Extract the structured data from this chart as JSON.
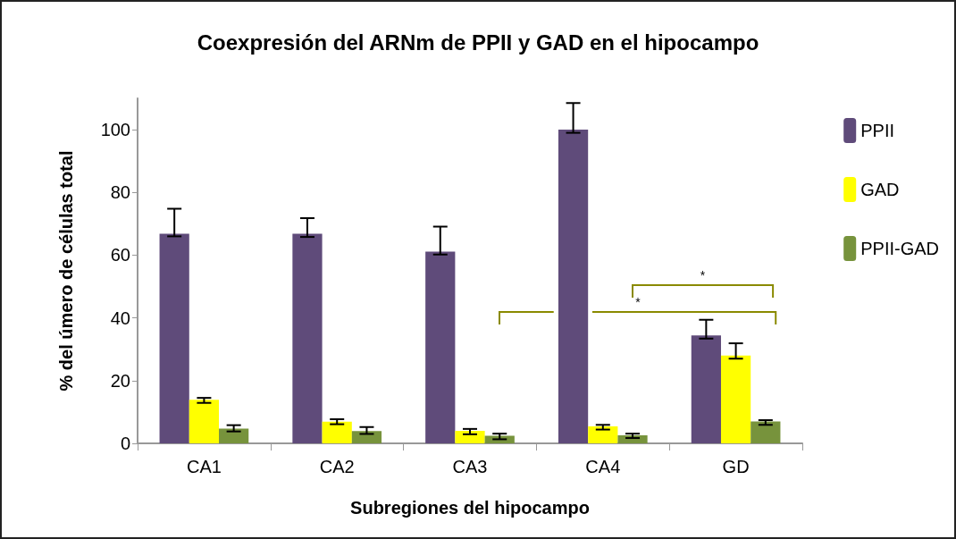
{
  "chart_data": {
    "type": "bar",
    "title": "Coexpresión del ARNm de PPII y GAD en el hipocampo",
    "xlabel": "Subregiones del hipocampo",
    "ylabel": "% del úmero de células total",
    "categories": [
      "CA1",
      "CA2",
      "CA3",
      "CA4",
      "GD"
    ],
    "series": [
      {
        "name": "PPII",
        "color": "#5f4b7a",
        "values": [
          66.8,
          66.8,
          61.1,
          100,
          34.4
        ],
        "errors": [
          [
            66,
            74.8
          ],
          [
            65.8,
            71.8
          ],
          [
            60.2,
            69.1
          ],
          [
            99,
            108.5
          ],
          [
            33.4,
            39.4
          ]
        ]
      },
      {
        "name": "GAD",
        "color": "#ffff00",
        "values": [
          13.9,
          6.9,
          4.0,
          5.4,
          28.0
        ],
        "errors": [
          [
            12.9,
            14.5
          ],
          [
            6.1,
            7.7
          ],
          [
            2.9,
            4.6
          ],
          [
            4.4,
            5.9
          ],
          [
            27.0,
            31.9
          ]
        ]
      },
      {
        "name": "PPII-GAD",
        "color": "#77933c",
        "values": [
          4.7,
          3.9,
          2.4,
          2.6,
          7.0
        ],
        "errors": [
          [
            3.8,
            5.8
          ],
          [
            3.0,
            5.2
          ],
          [
            1.3,
            3.1
          ],
          [
            1.7,
            3.1
          ],
          [
            5.9,
            7.4
          ]
        ]
      }
    ],
    "ylim": [
      0,
      110
    ],
    "yticks": [
      0,
      20,
      40,
      60,
      80,
      100
    ],
    "grid": false,
    "legend": "right",
    "annotations": [
      "*",
      "*"
    ]
  }
}
